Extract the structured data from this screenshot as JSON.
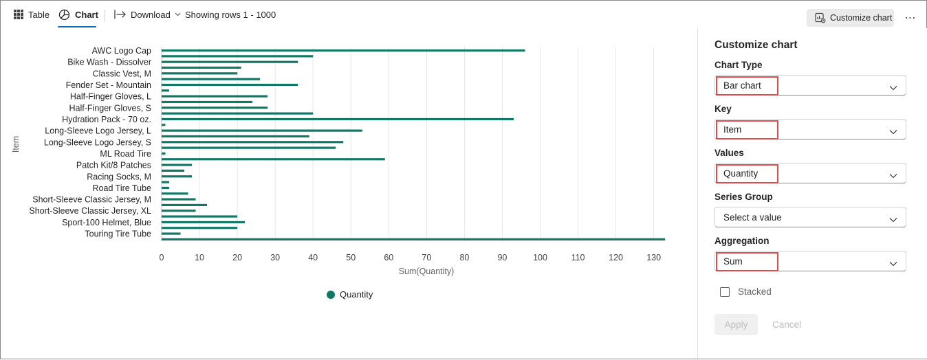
{
  "toolbar": {
    "table_label": "Table",
    "chart_label": "Chart",
    "download_label": "Download",
    "rows_status": "Showing rows 1 - 1000",
    "customize_label": "Customize chart",
    "more_label": "⋯"
  },
  "chart_data": {
    "type": "bar",
    "orientation": "horizontal",
    "categories": [
      "AWC Logo Cap",
      "",
      "Bike Wash - Dissolver",
      "",
      "Classic Vest, M",
      "",
      "Fender Set - Mountain",
      "",
      "Half-Finger Gloves, L",
      "",
      "Half-Finger Gloves, S",
      "",
      "Hydration Pack - 70 oz.",
      "",
      "Long-Sleeve Logo Jersey, L",
      "",
      "Long-Sleeve Logo Jersey, S",
      "",
      "ML Road Tire",
      "",
      "Patch Kit/8 Patches",
      "",
      "Racing Socks, M",
      "",
      "Road Tire Tube",
      "",
      "Short-Sleeve Classic Jersey, M",
      "",
      "Short-Sleeve Classic Jersey, XL",
      "",
      "Sport-100 Helmet, Blue",
      "",
      "Touring Tire Tube",
      ""
    ],
    "series": [
      {
        "name": "Quantity",
        "color": "#117865",
        "values": [
          96,
          40,
          36,
          21,
          20,
          26,
          36,
          2,
          28,
          24,
          28,
          40,
          93,
          1,
          53,
          39,
          48,
          46,
          1,
          59,
          8,
          6,
          8,
          2,
          2,
          7,
          9,
          12,
          9,
          20,
          22,
          20,
          5,
          133
        ]
      }
    ],
    "xlabel": "Sum(Quantity)",
    "ylabel": "Item",
    "xlim": [
      0,
      133
    ],
    "xticks": [
      0,
      10,
      20,
      30,
      40,
      50,
      60,
      70,
      80,
      90,
      100,
      110,
      120,
      130
    ],
    "grid": "vertical",
    "legend_position": "bottom-center"
  },
  "legend": {
    "label": "Quantity"
  },
  "panel": {
    "title": "Customize chart",
    "chart_type_label": "Chart Type",
    "chart_type_value": "Bar chart",
    "key_label": "Key",
    "key_value": "Item",
    "values_label": "Values",
    "values_value": "Quantity",
    "series_group_label": "Series Group",
    "series_group_value": "Select a value",
    "aggregation_label": "Aggregation",
    "aggregation_value": "Sum",
    "stacked_label": "Stacked",
    "stacked_checked": false,
    "apply_label": "Apply",
    "cancel_label": "Cancel",
    "highlight_color": "#e5484d"
  }
}
